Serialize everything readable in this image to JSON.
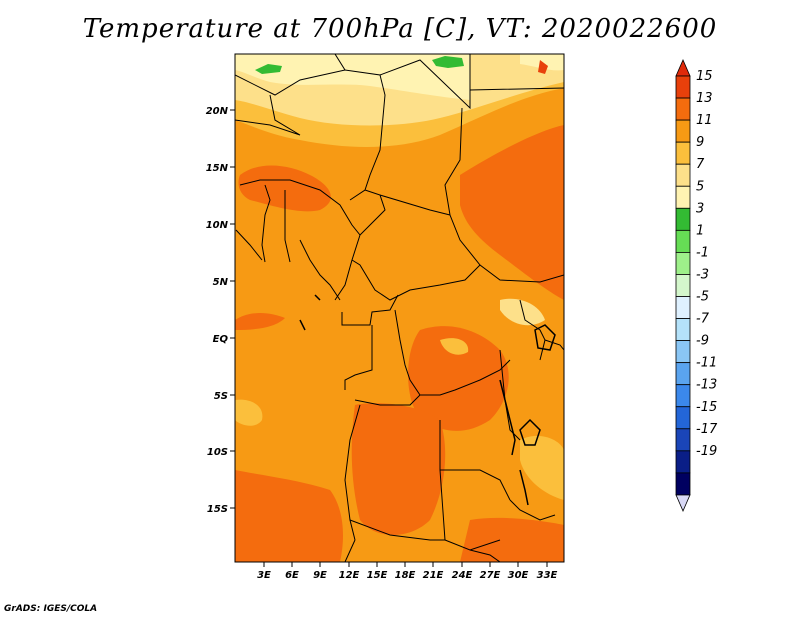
{
  "title": "Temperature at 700hPa [C], VT: 2020022600",
  "credit": "GrADS: IGES/COLA",
  "map": {
    "lat_labels": [
      "20N",
      "15N",
      "10N",
      "5N",
      "EQ",
      "5S",
      "10S",
      "15S"
    ],
    "lon_labels": [
      "3E",
      "6E",
      "9E",
      "12E",
      "15E",
      "18E",
      "21E",
      "24E",
      "27E",
      "30E",
      "33E"
    ],
    "colors": {
      "c13_15": "#e8400b",
      "c11_13": "#f46c0e",
      "c9_11": "#f79a14",
      "c7_9": "#fbbf3c",
      "c5_7": "#fde08a",
      "c3_5": "#fff3b2",
      "c1_3": "#33bb33",
      "border": "#000000"
    }
  },
  "colorbar": {
    "labels": [
      "15",
      "13",
      "11",
      "9",
      "7",
      "5",
      "3",
      "1",
      "-1",
      "-3",
      "-5",
      "-7",
      "-9",
      "-11",
      "-13",
      "-15",
      "-17",
      "-19"
    ],
    "colors": [
      "#e8400b",
      "#f46c0e",
      "#f79a14",
      "#fbbf3c",
      "#fde08a",
      "#fff3b2",
      "#33bb33",
      "#66dd55",
      "#9ef08a",
      "#d4f7cc",
      "#dff1ff",
      "#b4e2fa",
      "#8ac6f5",
      "#5aa4ef",
      "#3b88eb",
      "#2366d8",
      "#1a45b8",
      "#0a1e87",
      "#000060"
    ],
    "top_triangle_color": "#e02a0a",
    "bottom_triangle_color": "#d8d8f5"
  }
}
